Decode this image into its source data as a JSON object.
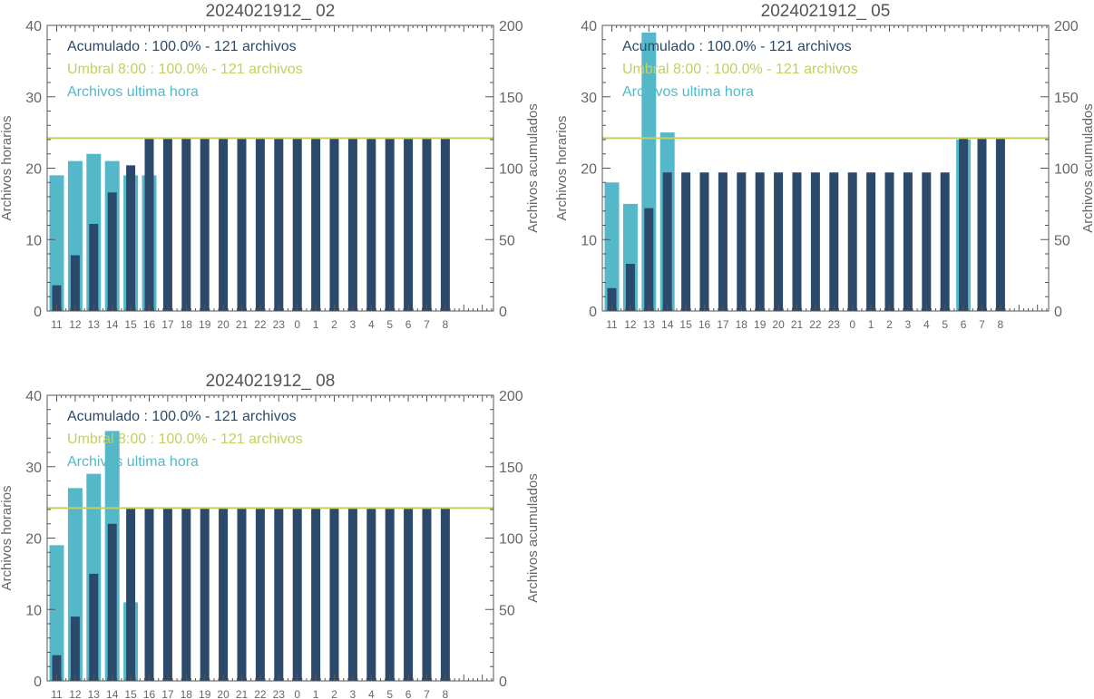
{
  "chart_data": [
    {
      "type": "bar",
      "title": "2024021912_ 02",
      "ylabel": "Archivos horarios",
      "y2label": "Archivos acumulados",
      "ylim": [
        0,
        40
      ],
      "y2lim": [
        0,
        200
      ],
      "yticks": [
        "0",
        "10",
        "20",
        "30",
        "40"
      ],
      "y2ticks": [
        "0",
        "50",
        "100",
        "150",
        "200"
      ],
      "categories": [
        "11",
        "12",
        "13",
        "14",
        "15",
        "16",
        "17",
        "18",
        "19",
        "20",
        "21",
        "22",
        "23",
        "0",
        "1",
        "2",
        "3",
        "4",
        "5",
        "6",
        "7",
        "8"
      ],
      "threshold": 121,
      "legend": [
        {
          "text": "Acumulado : 100.0% - 121 archivos",
          "color": "#2b4a6b"
        },
        {
          "text": "Umbral 8:00 : 100.0% - 121 archivos",
          "color": "#c5cf5c"
        },
        {
          "text": "Archivos ultima hora",
          "color": "#55b8c8"
        }
      ],
      "series": [
        {
          "name": "Archivos ultima hora",
          "axis": "left",
          "color": "#55b8c8",
          "values": [
            19,
            21,
            22,
            21,
            19,
            19,
            0,
            0,
            0,
            0,
            0,
            0,
            0,
            0,
            0,
            0,
            0,
            0,
            0,
            0,
            0,
            0
          ]
        },
        {
          "name": "Acumulado",
          "axis": "right",
          "color": "#2b4a6b",
          "values": [
            18,
            39,
            61,
            83,
            102,
            121,
            121,
            121,
            121,
            121,
            121,
            121,
            121,
            121,
            121,
            121,
            121,
            121,
            121,
            121,
            121,
            121
          ]
        }
      ]
    },
    {
      "type": "bar",
      "title": "2024021912_ 05",
      "ylabel": "Archivos horarios",
      "y2label": "Archivos acumulados",
      "ylim": [
        0,
        40
      ],
      "y2lim": [
        0,
        200
      ],
      "yticks": [
        "0",
        "10",
        "20",
        "30",
        "40"
      ],
      "y2ticks": [
        "0",
        "50",
        "100",
        "150",
        "200"
      ],
      "categories": [
        "11",
        "12",
        "13",
        "14",
        "15",
        "16",
        "17",
        "18",
        "19",
        "20",
        "21",
        "22",
        "23",
        "0",
        "1",
        "2",
        "3",
        "4",
        "5",
        "6",
        "7",
        "8"
      ],
      "threshold": 121,
      "legend": [
        {
          "text": "Acumulado : 100.0% - 121 archivos",
          "color": "#2b4a6b"
        },
        {
          "text": "Umbral 8:00 : 100.0% - 121 archivos",
          "color": "#c5cf5c"
        },
        {
          "text": "Archivos ultima hora",
          "color": "#55b8c8"
        }
      ],
      "series": [
        {
          "name": "Archivos ultima hora",
          "axis": "left",
          "color": "#55b8c8",
          "values": [
            18,
            15,
            39,
            25,
            0,
            0,
            0,
            0,
            0,
            0,
            0,
            0,
            0,
            0,
            0,
            0,
            0,
            0,
            0,
            24,
            0,
            0
          ]
        },
        {
          "name": "Acumulado",
          "axis": "right",
          "color": "#2b4a6b",
          "values": [
            16,
            33,
            72,
            97,
            97,
            97,
            97,
            97,
            97,
            97,
            97,
            97,
            97,
            97,
            97,
            97,
            97,
            97,
            97,
            121,
            121,
            121
          ]
        }
      ]
    },
    {
      "type": "bar",
      "title": "2024021912_ 08",
      "ylabel": "Archivos horarios",
      "y2label": "Archivos acumulados",
      "ylim": [
        0,
        40
      ],
      "y2lim": [
        0,
        200
      ],
      "yticks": [
        "0",
        "10",
        "20",
        "30",
        "40"
      ],
      "y2ticks": [
        "0",
        "50",
        "100",
        "150",
        "200"
      ],
      "categories": [
        "11",
        "12",
        "13",
        "14",
        "15",
        "16",
        "17",
        "18",
        "19",
        "20",
        "21",
        "22",
        "23",
        "0",
        "1",
        "2",
        "3",
        "4",
        "5",
        "6",
        "7",
        "8"
      ],
      "threshold": 121,
      "legend": [
        {
          "text": "Acumulado : 100.0% - 121 archivos",
          "color": "#2b4a6b"
        },
        {
          "text": "Umbral 8:00 : 100.0% - 121 archivos",
          "color": "#c5cf5c"
        },
        {
          "text": "Archivos ultima hora",
          "color": "#55b8c8"
        }
      ],
      "series": [
        {
          "name": "Archivos ultima hora",
          "axis": "left",
          "color": "#55b8c8",
          "values": [
            19,
            27,
            29,
            35,
            11,
            0,
            0,
            0,
            0,
            0,
            0,
            0,
            0,
            0,
            0,
            0,
            0,
            0,
            0,
            0,
            0,
            0
          ]
        },
        {
          "name": "Acumulado",
          "axis": "right",
          "color": "#2b4a6b",
          "values": [
            18,
            45,
            75,
            110,
            121,
            121,
            121,
            121,
            121,
            121,
            121,
            121,
            121,
            121,
            121,
            121,
            121,
            121,
            121,
            121,
            121,
            121
          ]
        }
      ]
    }
  ]
}
